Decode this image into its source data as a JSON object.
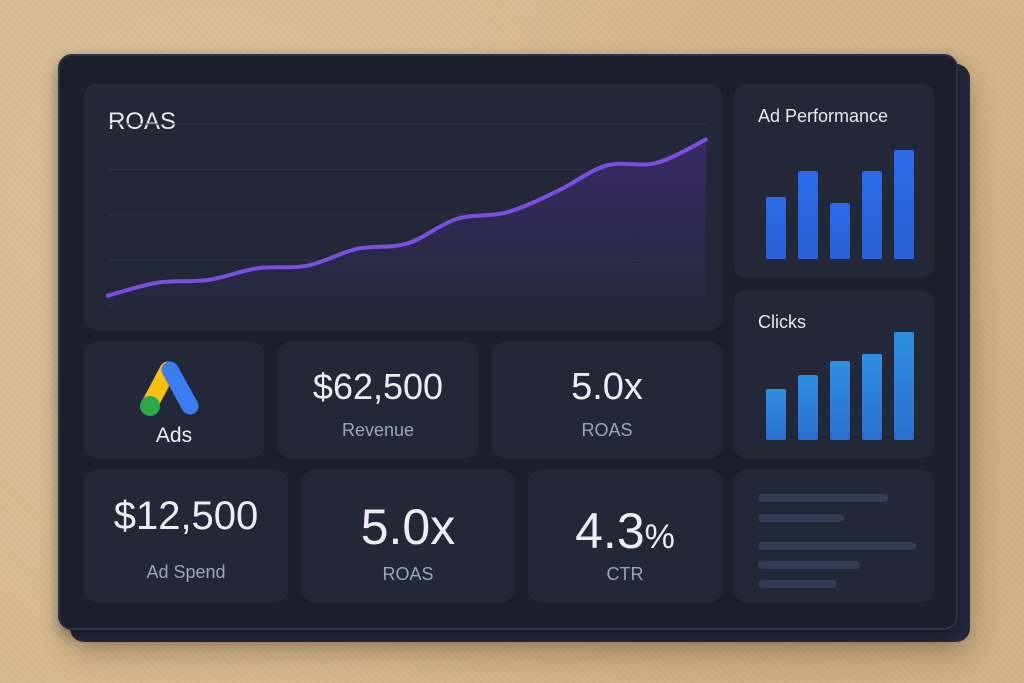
{
  "roas_chart": {
    "title": "ROAS",
    "chart_data": {
      "type": "area",
      "title": "ROAS",
      "x": [
        0,
        1,
        2,
        3,
        4,
        5,
        6,
        7,
        8,
        9,
        10,
        11,
        12
      ],
      "values": [
        0.8,
        1.8,
        2.0,
        2.9,
        3.1,
        4.4,
        4.8,
        6.7,
        7.2,
        8.8,
        10.8,
        11.0,
        12.8
      ],
      "ylim": [
        0,
        14
      ],
      "grid": true,
      "line_color": "#7b4fe0",
      "fill_color": "#3a2a6a"
    }
  },
  "ad_performance": {
    "title": "Ad Performance",
    "chart_data": {
      "type": "bar",
      "values": [
        62,
        88,
        56,
        88,
        109
      ],
      "ylim": [
        0,
        115
      ],
      "colors": [
        "#2b6be8",
        "#2a5fd8"
      ]
    }
  },
  "clicks": {
    "title": "Clicks",
    "chart_data": {
      "type": "bar",
      "values": [
        51,
        65,
        79,
        86,
        108
      ],
      "ylim": [
        0,
        115
      ],
      "colors": [
        "#2f8ee0",
        "#2a70d0"
      ]
    }
  },
  "ads_logo": {
    "label": "Ads",
    "colors": {
      "yellow": "#f7bf0f",
      "blue": "#3b7cf0",
      "green": "#2aa84a"
    }
  },
  "revenue": {
    "value": "$62,500",
    "label": "Revenue"
  },
  "roas_top": {
    "value": "5.0x",
    "label": "ROAS"
  },
  "ad_spend": {
    "value": "$12,500",
    "label": "Ad Spend"
  },
  "roas_bottom": {
    "value": "5.0x",
    "label": "ROAS"
  },
  "ctr": {
    "value": "4.3",
    "unit": "%",
    "label": "CTR"
  }
}
